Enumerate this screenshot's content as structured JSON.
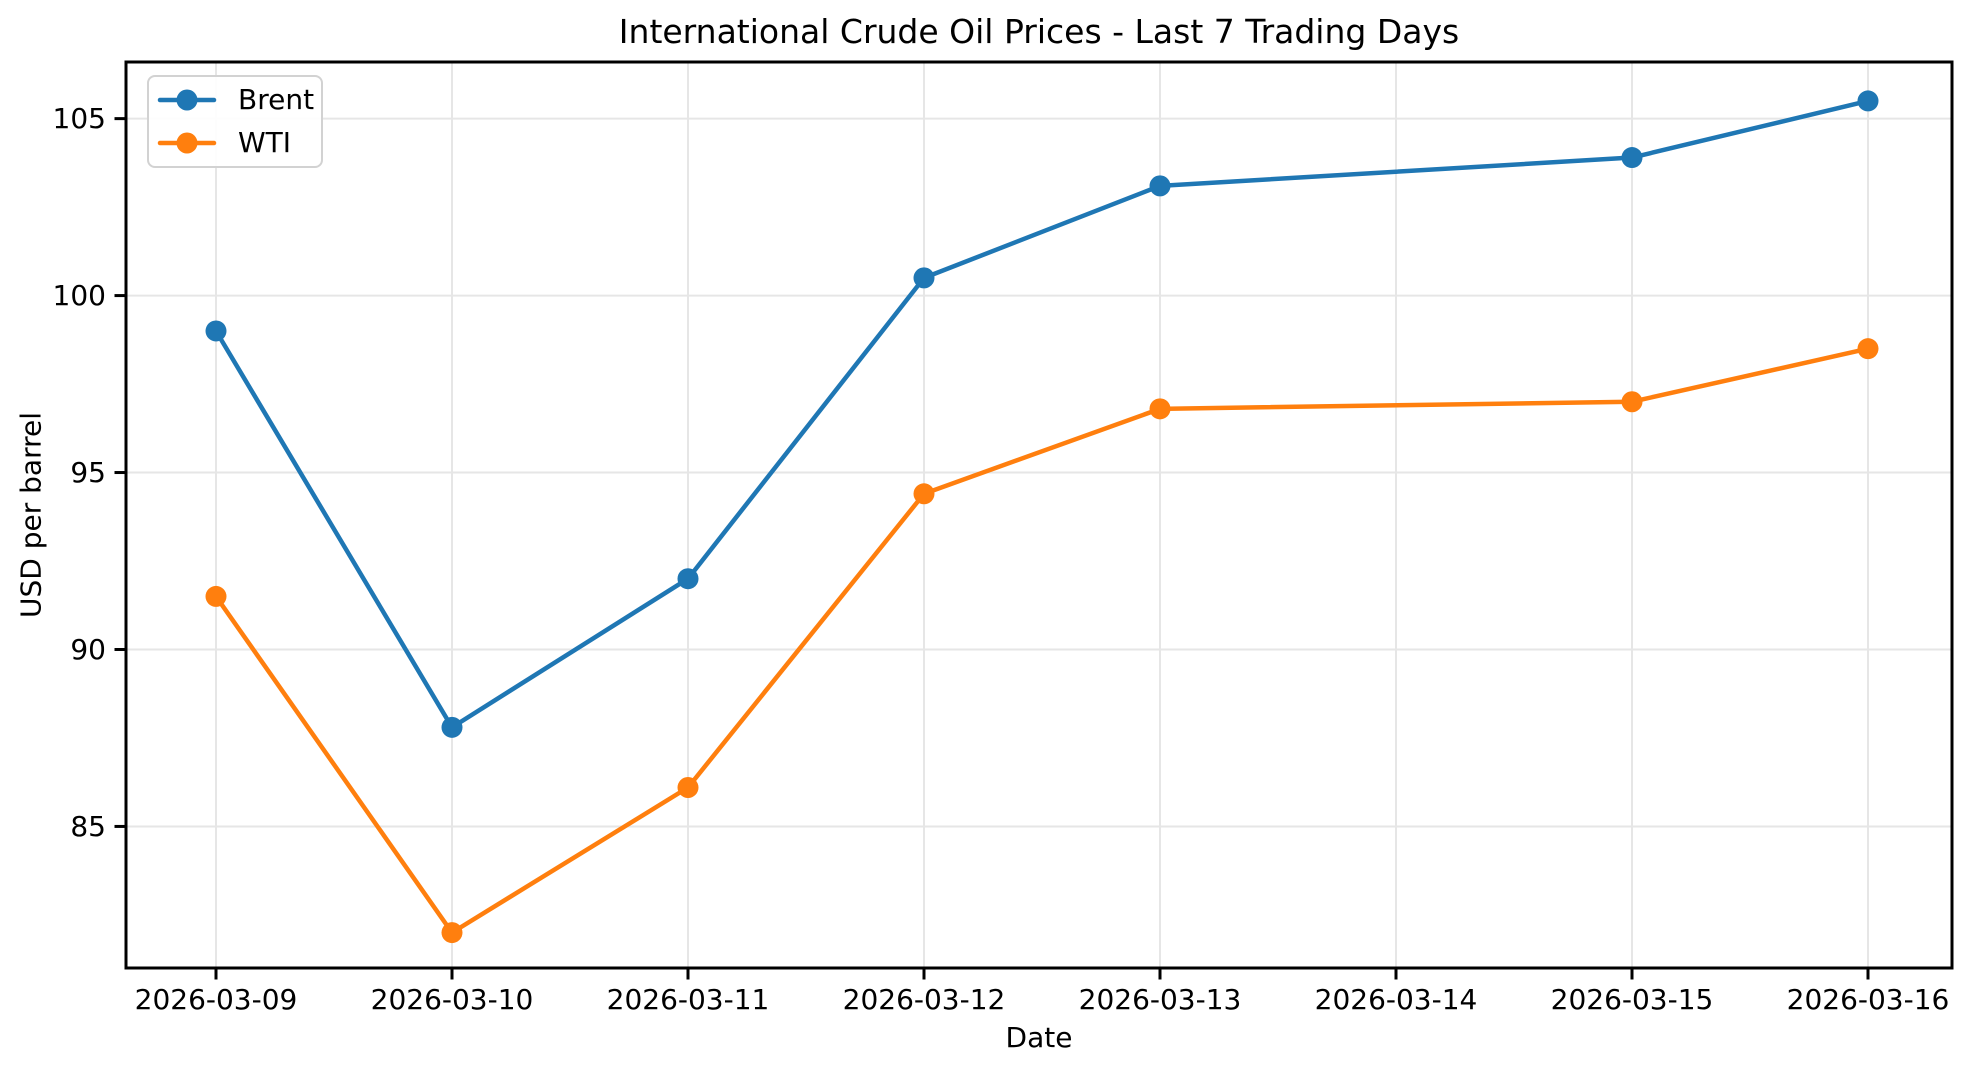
{
  "chart_data": {
    "type": "line",
    "title": "International Crude Oil Prices - Last 7 Trading Days",
    "xlabel": "Date",
    "ylabel": "USD per barrel",
    "x_tick_labels": [
      "2026-03-09",
      "2026-03-10",
      "2026-03-11",
      "2026-03-12",
      "2026-03-13",
      "2026-03-14",
      "2026-03-15",
      "2026-03-16"
    ],
    "y_ticks": [
      85,
      90,
      95,
      100,
      105
    ],
    "ylim": [
      81.0,
      106.6
    ],
    "grid": true,
    "grid_color": "#e6e6e6",
    "axis_color": "#000000",
    "legend_position": "upper left",
    "series": [
      {
        "name": "Brent",
        "color": "#1f77b4",
        "marker": "o",
        "x": [
          "2026-03-09",
          "2026-03-10",
          "2026-03-11",
          "2026-03-12",
          "2026-03-13",
          "2026-03-15",
          "2026-03-16"
        ],
        "values": [
          99.0,
          87.8,
          92.0,
          100.5,
          103.1,
          103.9,
          105.5
        ]
      },
      {
        "name": "WTI",
        "color": "#ff7f0e",
        "marker": "o",
        "x": [
          "2026-03-09",
          "2026-03-10",
          "2026-03-11",
          "2026-03-12",
          "2026-03-13",
          "2026-03-15",
          "2026-03-16"
        ],
        "values": [
          91.5,
          82.0,
          86.1,
          94.4,
          96.8,
          97.0,
          98.5
        ]
      }
    ]
  }
}
